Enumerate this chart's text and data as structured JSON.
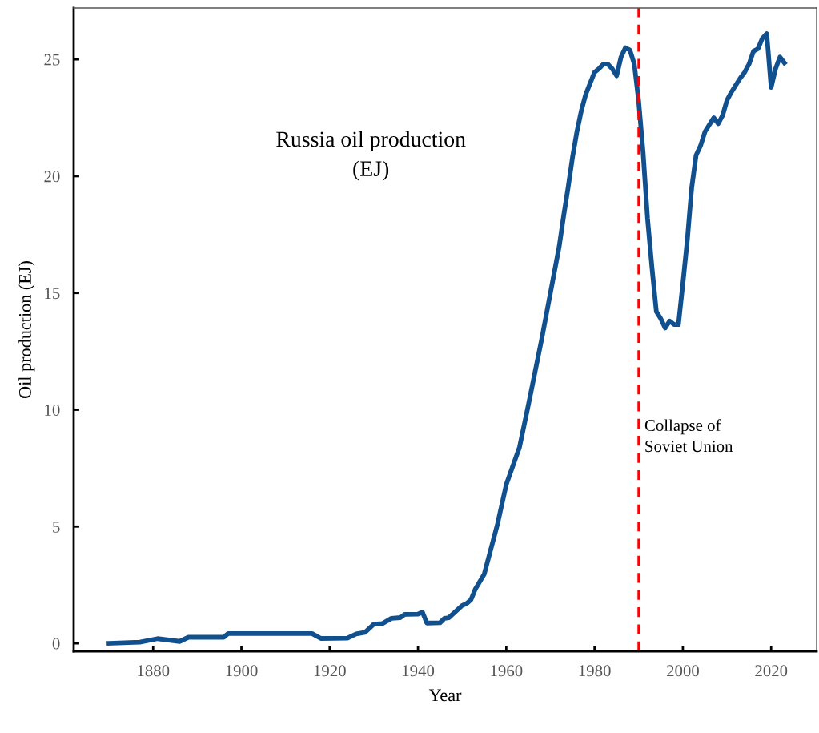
{
  "chart_data": {
    "type": "line",
    "title": "Russia oil production\n(EJ)",
    "xlabel": "Year",
    "ylabel": "Oil production (EJ)",
    "x": [
      1870,
      1877,
      1881,
      1886,
      1888,
      1896,
      1897,
      1916,
      1918,
      1924,
      1926,
      1928,
      1930,
      1932,
      1934,
      1936,
      1937,
      1940,
      1941,
      1942,
      1945,
      1946,
      1947,
      1950,
      1951,
      1952,
      1953,
      1955,
      1958,
      1960,
      1963,
      1965,
      1968,
      1970,
      1972,
      1973,
      1974,
      1975,
      1976,
      1977,
      1978,
      1980,
      1981,
      1982,
      1983,
      1984,
      1985,
      1986,
      1987,
      1988,
      1989,
      1990,
      1991,
      1992,
      1993,
      1994,
      1995,
      1996,
      1997,
      1998,
      1999,
      2000,
      2001,
      2002,
      2003,
      2004,
      2005,
      2006,
      2007,
      2008,
      2009,
      2010,
      2011,
      2012,
      2013,
      2014,
      2015,
      2016,
      2017,
      2018,
      2019,
      2020,
      2021,
      2022,
      2023
    ],
    "series": [
      {
        "color": "#11508e",
        "values": [
          0.0,
          0.05,
          0.2,
          0.08,
          0.26,
          0.26,
          0.42,
          0.42,
          0.21,
          0.22,
          0.4,
          0.47,
          0.82,
          0.85,
          1.07,
          1.1,
          1.24,
          1.25,
          1.34,
          0.87,
          0.88,
          1.07,
          1.1,
          1.62,
          1.7,
          1.87,
          2.33,
          2.96,
          5.1,
          6.8,
          8.4,
          10.2,
          13.0,
          15.0,
          17.0,
          18.3,
          19.5,
          20.8,
          21.9,
          22.8,
          23.5,
          24.45,
          24.6,
          24.8,
          24.8,
          24.6,
          24.3,
          25.1,
          25.5,
          25.4,
          24.8,
          23.2,
          21.0,
          18.2,
          16.1,
          14.2,
          13.9,
          13.5,
          13.8,
          13.65,
          13.65,
          15.4,
          17.25,
          19.5,
          20.9,
          21.3,
          21.9,
          22.2,
          22.5,
          22.25,
          22.6,
          23.25,
          23.6,
          23.9,
          24.2,
          24.45,
          24.8,
          25.35,
          25.45,
          25.9,
          26.1,
          23.8,
          24.6,
          25.1,
          24.85
        ]
      }
    ],
    "xlim": [
      1862,
      2030.3
    ],
    "ylim": [
      -0.34,
      27.2
    ],
    "xticks": [
      1880,
      1900,
      1920,
      1940,
      1960,
      1980,
      2000,
      2020
    ],
    "yticks": [
      0,
      5,
      10,
      15,
      20,
      25
    ],
    "ref_lines": [
      {
        "axis": "x",
        "value": 1990,
        "label": "Collapse of\nSoviet Union",
        "color": "#ff0000",
        "line_style": "dashed"
      }
    ],
    "grid": false,
    "legend": false,
    "marker": "none",
    "line_style": "solid"
  }
}
